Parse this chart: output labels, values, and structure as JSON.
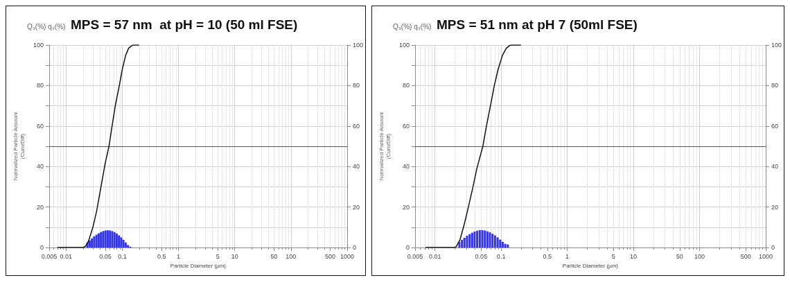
{
  "chart_data": [
    {
      "type": "line",
      "title": "MPS = 57 nm  at pH = 10 (50 ml FSE)",
      "xlabel": "Particle Diameter (µm)",
      "ylabel": "Normalized Particle Amount\n(Cum/Diff)",
      "annotations": [
        "Q₃(%) q₃(%)"
      ],
      "log": "x",
      "xlim": [
        0.005,
        1000
      ],
      "xticks": [
        0.005,
        0.01,
        0.05,
        0.1,
        0.5,
        1,
        5,
        10,
        50,
        100,
        500,
        1000
      ],
      "ylim": [
        0,
        100
      ],
      "yticks": [
        0,
        {
          "value": 10,
          "label": null
        },
        20,
        {
          "value": 30,
          "label": null
        },
        40,
        {
          "value": 50,
          "label": null
        },
        60,
        {
          "value": 70,
          "label": null
        },
        80,
        {
          "value": 90,
          "label": null
        },
        100
      ],
      "y2lim": [
        0,
        100
      ],
      "y2ticks": [
        0,
        20,
        40,
        60,
        80,
        100
      ],
      "grid": true,
      "marker": "none",
      "ref_lines": [
        {
          "axis": "y",
          "value": 50,
          "color": "#555555"
        }
      ],
      "series": [
        {
          "color": "#111111",
          "x": [
            0.007,
            0.02,
            0.022,
            0.025,
            0.03,
            0.035,
            0.04,
            0.045,
            0.05,
            0.058,
            0.065,
            0.075,
            0.09,
            0.1,
            0.115,
            0.13,
            0.15,
            0.16,
            0.2
          ],
          "values": [
            0,
            0,
            0.5,
            3,
            10,
            18,
            27,
            35,
            42,
            50,
            59,
            70,
            81,
            88,
            95,
            98.5,
            99.8,
            100,
            100
          ]
        },
        {
          "type": "bar",
          "color": "#3333ee",
          "x": [
            0.024,
            0.0263,
            0.0288,
            0.0316,
            0.0347,
            0.038,
            0.0417,
            0.0457,
            0.0501,
            0.055,
            0.0603,
            0.0661,
            0.0725,
            0.0795,
            0.0871,
            0.0955,
            0.1048,
            0.1149,
            0.126,
            0.1381
          ],
          "values": [
            2.5,
            3.5,
            4.5,
            5.5,
            6.3,
            7.0,
            7.6,
            8.1,
            8.4,
            8.5,
            8.4,
            8.1,
            7.6,
            6.9,
            6.0,
            5.0,
            3.8,
            2.5,
            1.2,
            0.4
          ]
        }
      ]
    },
    {
      "type": "line",
      "title": "MPS = 51 nm at pH 7 (50ml FSE)",
      "xlabel": "Particle Diameter (µm)",
      "ylabel": "Normalized Particle Amount\n(Cum/Diff)",
      "annotations": [
        "Q₃(%) q₃(%)"
      ],
      "log": "x",
      "xlim": [
        0.005,
        1000
      ],
      "xticks": [
        0.005,
        0.01,
        0.05,
        0.1,
        0.5,
        1,
        5,
        10,
        50,
        100,
        500,
        1000
      ],
      "ylim": [
        0,
        100
      ],
      "yticks": [
        0,
        {
          "value": 10,
          "label": null
        },
        20,
        {
          "value": 30,
          "label": null
        },
        40,
        {
          "value": 50,
          "label": null
        },
        60,
        {
          "value": 70,
          "label": null
        },
        80,
        {
          "value": 90,
          "label": null
        },
        100
      ],
      "y2lim": [
        0,
        100
      ],
      "y2ticks": [
        0,
        20,
        40,
        60,
        80,
        100
      ],
      "grid": true,
      "marker": "none",
      "ref_lines": [
        {
          "axis": "y",
          "value": 50,
          "color": "#555555"
        }
      ],
      "series": [
        {
          "color": "#111111",
          "x": [
            0.0072,
            0.02,
            0.021,
            0.024,
            0.028,
            0.032,
            0.037,
            0.043,
            0.053,
            0.06,
            0.07,
            0.079,
            0.09,
            0.105,
            0.12,
            0.135,
            0.144,
            0.2
          ],
          "values": [
            0,
            0,
            0.5,
            4,
            12,
            20,
            29,
            39,
            50,
            60,
            71,
            80,
            88,
            95,
            98.5,
            99.8,
            100,
            100
          ]
        },
        {
          "type": "bar",
          "color": "#3333ee",
          "x": [
            0.0234,
            0.0256,
            0.0279,
            0.0305,
            0.0334,
            0.0365,
            0.0398,
            0.0435,
            0.0476,
            0.052,
            0.0568,
            0.0621,
            0.0678,
            0.0741,
            0.081,
            0.0885,
            0.0967,
            0.1057,
            0.1154,
            0.1261
          ],
          "values": [
            2.8,
            3.8,
            4.8,
            5.8,
            6.6,
            7.3,
            7.9,
            8.3,
            8.6,
            8.6,
            8.4,
            8.0,
            7.5,
            6.8,
            6.0,
            5.0,
            3.9,
            2.8,
            1.8,
            1.5
          ]
        }
      ]
    }
  ]
}
